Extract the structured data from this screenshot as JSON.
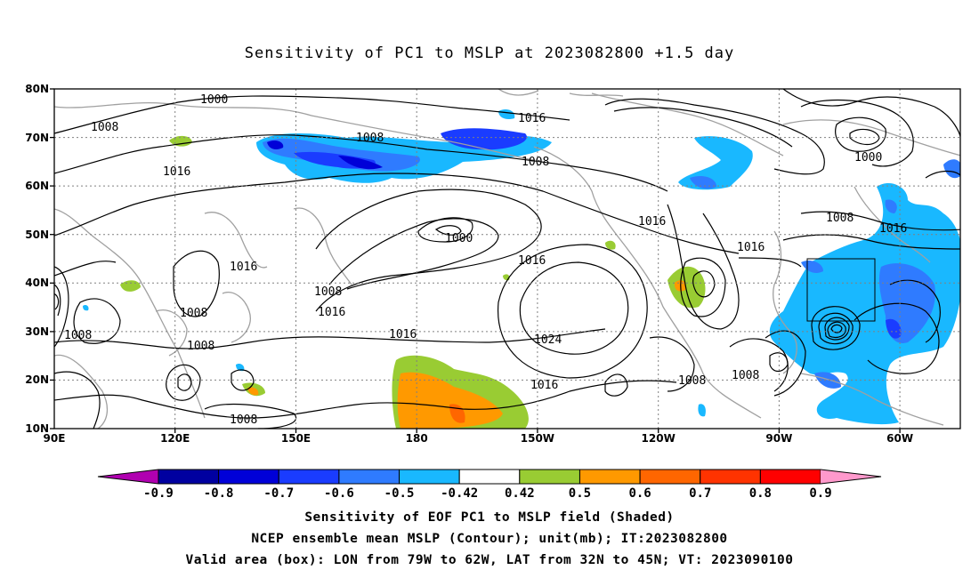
{
  "title": "Sensitivity of PC1 to MSLP at 2023082800 +1.5 day",
  "lat_labels": [
    "80N",
    "70N",
    "60N",
    "50N",
    "40N",
    "30N",
    "20N",
    "10N"
  ],
  "lon_labels": [
    "90E",
    "120E",
    "150E",
    "180",
    "150W",
    "120W",
    "90W",
    "60W"
  ],
  "contour_labels": [
    "1000",
    "1008",
    "1016",
    "1008",
    "1016",
    "1008",
    "1000",
    "1016",
    "1016",
    "1008",
    "1016",
    "1008",
    "1008",
    "1016",
    "1016",
    "1024",
    "1008",
    "1008",
    "1008",
    "1016",
    "1008",
    "1008",
    "1016",
    "1000",
    "1016",
    "1008"
  ],
  "colorbar": {
    "labels": [
      "-0.9",
      "-0.8",
      "-0.7",
      "-0.6",
      "-0.5",
      "-0.42",
      "0.42",
      "0.5",
      "0.6",
      "0.7",
      "0.8",
      "0.9"
    ],
    "colors": [
      "#b000b0",
      "#0000a0",
      "#0000d8",
      "#1a3cff",
      "#2f7bff",
      "#19b8ff",
      "#ffffff",
      "#99cc33",
      "#ff9900",
      "#ff6600",
      "#ff3300",
      "#ff0000",
      "#ff99cc"
    ]
  },
  "captions": [
    "Sensitivity of EOF PC1 to MSLP field (Shaded)",
    "NCEP ensemble mean MSLP (Contour); unit(mb); IT:2023082800",
    "Valid area (box): LON from 79W to 62W, LAT from 32N to 45N; VT: 2023090100"
  ]
}
